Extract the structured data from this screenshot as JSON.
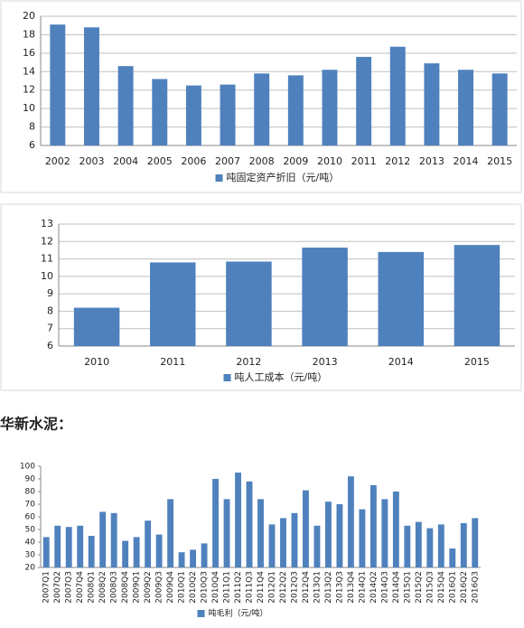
{
  "heading": "华新水泥：",
  "chart_data": [
    {
      "type": "bar",
      "categories": [
        "2002",
        "2003",
        "2004",
        "2005",
        "2006",
        "2007",
        "2008",
        "2009",
        "2010",
        "2011",
        "2012",
        "2013",
        "2014",
        "2015"
      ],
      "series": [
        {
          "name": "吨固定资产折旧（元/吨）",
          "color": "#4f81bd",
          "values": [
            19.1,
            18.8,
            14.6,
            13.2,
            12.5,
            12.6,
            13.8,
            13.6,
            14.2,
            15.6,
            16.7,
            14.9,
            14.2,
            13.8
          ]
        }
      ],
      "ylim": [
        6,
        20
      ],
      "yticks": [
        6,
        8,
        10,
        12,
        14,
        16,
        18,
        20
      ],
      "grid": true,
      "legend": "bottom"
    },
    {
      "type": "bar",
      "categories": [
        "2010",
        "2011",
        "2012",
        "2013",
        "2014",
        "2015"
      ],
      "series": [
        {
          "name": "吨人工成本（元/吨）",
          "color": "#4f81bd",
          "values": [
            8.2,
            10.8,
            10.85,
            11.65,
            11.4,
            11.8
          ]
        }
      ],
      "ylim": [
        6,
        13
      ],
      "yticks": [
        6,
        7,
        8,
        9,
        10,
        11,
        12,
        13
      ],
      "grid": true,
      "legend": "bottom"
    },
    {
      "type": "bar",
      "categories": [
        "2007Q1",
        "2007Q2",
        "2007Q3",
        "2007Q4",
        "2008Q1",
        "2008Q2",
        "2008Q3",
        "2008Q4",
        "2009Q1",
        "2009Q2",
        "2009Q3",
        "2009Q4",
        "2010Q1",
        "2010Q2",
        "2010Q3",
        "2010Q4",
        "2011Q1",
        "2011Q2",
        "2011Q3",
        "2011Q4",
        "2012Q1",
        "2012Q2",
        "2012Q3",
        "2012Q4",
        "2013Q1",
        "2013Q2",
        "2013Q3",
        "2013Q4",
        "2014Q1",
        "2014Q2",
        "2014Q3",
        "2014Q4",
        "2015Q1",
        "2015Q2",
        "2015Q3",
        "2015Q4",
        "2016Q1",
        "2016Q2",
        "2016Q3"
      ],
      "series": [
        {
          "name": "吨毛利（元/吨）",
          "color": "#4f81bd",
          "values": [
            44,
            53,
            52,
            53,
            45,
            64,
            63,
            41,
            44,
            57,
            46,
            74,
            32,
            34,
            39,
            90,
            74,
            95,
            88,
            74,
            54,
            59,
            63,
            81,
            53,
            72,
            70,
            92,
            66,
            85,
            74,
            80,
            53,
            56,
            51,
            54,
            35,
            55,
            59
          ]
        }
      ],
      "ylim": [
        20,
        100
      ],
      "yticks": [
        20,
        30,
        40,
        50,
        60,
        70,
        80,
        90,
        100
      ],
      "grid": false,
      "legend": "bottom"
    }
  ]
}
